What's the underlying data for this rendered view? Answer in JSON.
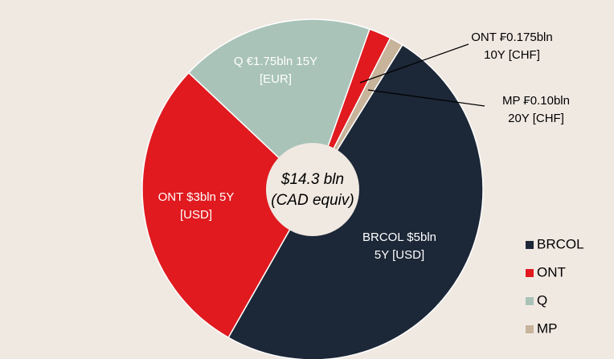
{
  "chart_data": {
    "type": "donut",
    "center_label": [
      "$14.3 bln",
      "(CAD equiv)"
    ],
    "labels": [
      [
        "BRCOL $5bln",
        "5Y [USD]"
      ],
      [
        "ONT $3bln 5Y",
        "[USD]"
      ],
      [
        "Q €1.75bln 15Y",
        "[EUR]"
      ],
      [
        "ONT ₣0.175bln",
        "10Y [CHF]"
      ],
      [
        "MP ₣0.10bln",
        "20Y [CHF]"
      ]
    ],
    "values": [
      49.4,
      28.8,
      18.4,
      2.1,
      1.3
    ],
    "colors": [
      "#1c2737",
      "#e01a1f",
      "#a9c3b8",
      "#e01a1f",
      "#c8b39b"
    ],
    "legend": [
      {
        "name": "BRCOL",
        "color": "#1c2737"
      },
      {
        "name": "ONT",
        "color": "#e01a1f"
      },
      {
        "name": "Q",
        "color": "#a9c3b8"
      },
      {
        "name": "MP",
        "color": "#c8b39b"
      }
    ]
  }
}
